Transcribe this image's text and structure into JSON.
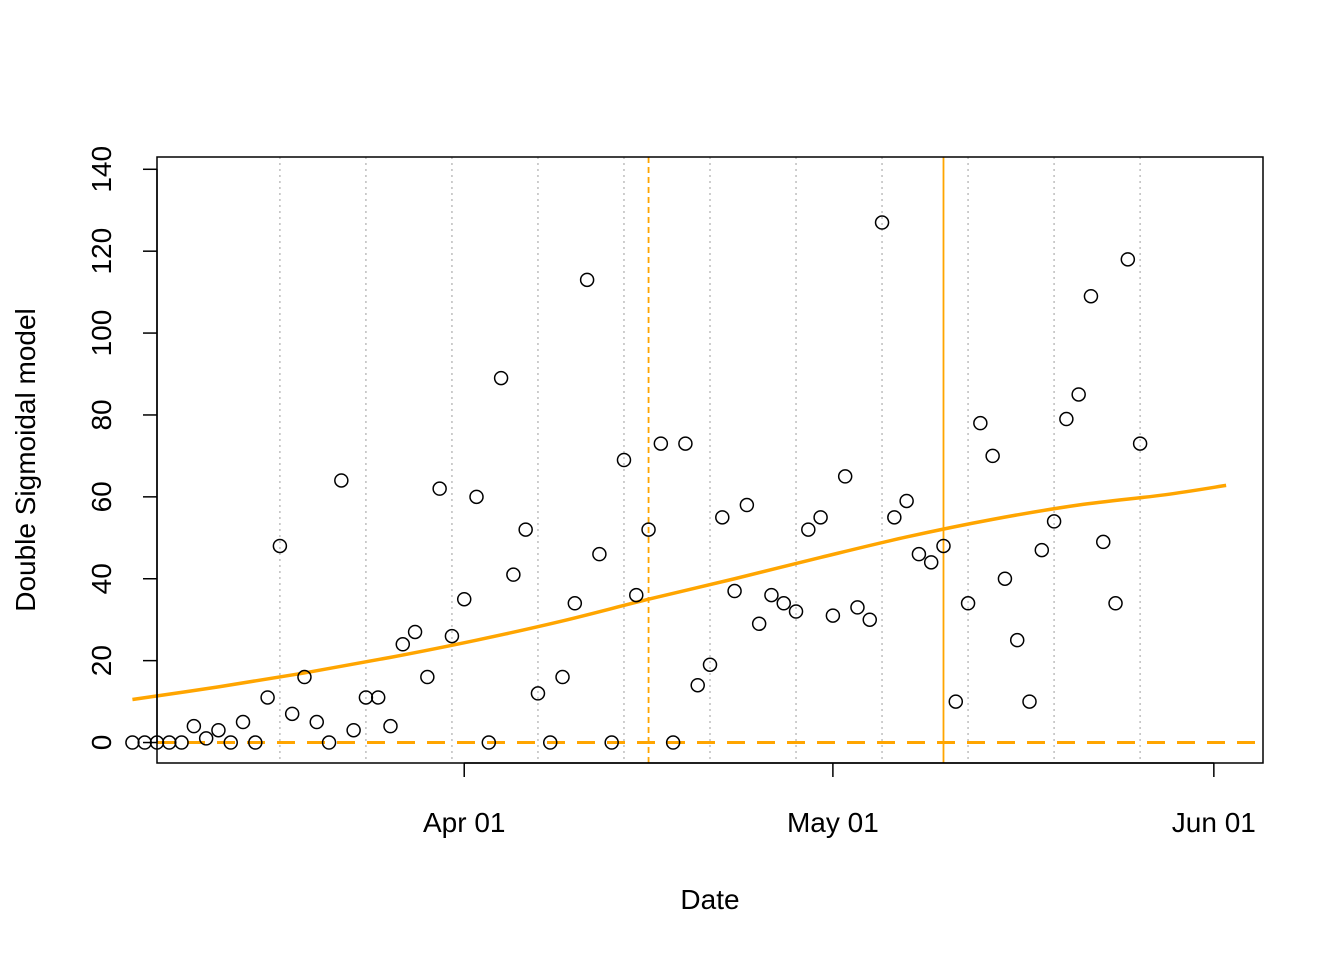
{
  "chart_data": {
    "type": "scatter",
    "xlabel": "Date",
    "ylabel": "Double Sigmoidal model",
    "x_ticks": [
      {
        "date": "2020-04-01",
        "label": "Apr 01"
      },
      {
        "date": "2020-05-01",
        "label": "May 01"
      },
      {
        "date": "2020-06-01",
        "label": "Jun 01"
      }
    ],
    "y_ticks": [
      0,
      20,
      40,
      60,
      80,
      100,
      120,
      140
    ],
    "xlim": [
      "2020-03-07",
      "2020-06-05"
    ],
    "ylim": [
      -5,
      143
    ],
    "grid": {
      "vertical_dotted_dates": [
        "2020-03-17",
        "2020-03-24",
        "2020-03-31",
        "2020-04-07",
        "2020-04-14",
        "2020-04-21",
        "2020-04-28",
        "2020-05-05",
        "2020-05-12",
        "2020-05-19",
        "2020-05-26"
      ]
    },
    "points": [
      {
        "x": "2020-03-05",
        "y": 0
      },
      {
        "x": "2020-03-06",
        "y": 0
      },
      {
        "x": "2020-03-07",
        "y": 0
      },
      {
        "x": "2020-03-08",
        "y": 0
      },
      {
        "x": "2020-03-09",
        "y": 0
      },
      {
        "x": "2020-03-10",
        "y": 4
      },
      {
        "x": "2020-03-11",
        "y": 1
      },
      {
        "x": "2020-03-12",
        "y": 3
      },
      {
        "x": "2020-03-13",
        "y": 0
      },
      {
        "x": "2020-03-14",
        "y": 5
      },
      {
        "x": "2020-03-15",
        "y": 0
      },
      {
        "x": "2020-03-16",
        "y": 11
      },
      {
        "x": "2020-03-17",
        "y": 48
      },
      {
        "x": "2020-03-18",
        "y": 7
      },
      {
        "x": "2020-03-19",
        "y": 16
      },
      {
        "x": "2020-03-20",
        "y": 5
      },
      {
        "x": "2020-03-21",
        "y": 0
      },
      {
        "x": "2020-03-22",
        "y": 64
      },
      {
        "x": "2020-03-23",
        "y": 3
      },
      {
        "x": "2020-03-24",
        "y": 11
      },
      {
        "x": "2020-03-25",
        "y": 11
      },
      {
        "x": "2020-03-26",
        "y": 4
      },
      {
        "x": "2020-03-27",
        "y": 24
      },
      {
        "x": "2020-03-28",
        "y": 27
      },
      {
        "x": "2020-03-29",
        "y": 16
      },
      {
        "x": "2020-03-30",
        "y": 62
      },
      {
        "x": "2020-03-31",
        "y": 26
      },
      {
        "x": "2020-04-01",
        "y": 35
      },
      {
        "x": "2020-04-02",
        "y": 60
      },
      {
        "x": "2020-04-03",
        "y": 0
      },
      {
        "x": "2020-04-04",
        "y": 89
      },
      {
        "x": "2020-04-05",
        "y": 41
      },
      {
        "x": "2020-04-06",
        "y": 52
      },
      {
        "x": "2020-04-07",
        "y": 12
      },
      {
        "x": "2020-04-08",
        "y": 0
      },
      {
        "x": "2020-04-09",
        "y": 16
      },
      {
        "x": "2020-04-10",
        "y": 34
      },
      {
        "x": "2020-04-11",
        "y": 113
      },
      {
        "x": "2020-04-12",
        "y": 46
      },
      {
        "x": "2020-04-13",
        "y": 0
      },
      {
        "x": "2020-04-14",
        "y": 69
      },
      {
        "x": "2020-04-15",
        "y": 36
      },
      {
        "x": "2020-04-16",
        "y": 52
      },
      {
        "x": "2020-04-17",
        "y": 73
      },
      {
        "x": "2020-04-18",
        "y": 0
      },
      {
        "x": "2020-04-19",
        "y": 73
      },
      {
        "x": "2020-04-20",
        "y": 14
      },
      {
        "x": "2020-04-21",
        "y": 19
      },
      {
        "x": "2020-04-22",
        "y": 55
      },
      {
        "x": "2020-04-23",
        "y": 37
      },
      {
        "x": "2020-04-24",
        "y": 58
      },
      {
        "x": "2020-04-25",
        "y": 29
      },
      {
        "x": "2020-04-26",
        "y": 36
      },
      {
        "x": "2020-04-27",
        "y": 34
      },
      {
        "x": "2020-04-28",
        "y": 32
      },
      {
        "x": "2020-04-29",
        "y": 52
      },
      {
        "x": "2020-04-30",
        "y": 55
      },
      {
        "x": "2020-05-01",
        "y": 31
      },
      {
        "x": "2020-05-02",
        "y": 65
      },
      {
        "x": "2020-05-03",
        "y": 33
      },
      {
        "x": "2020-05-04",
        "y": 30
      },
      {
        "x": "2020-05-05",
        "y": 127
      },
      {
        "x": "2020-05-06",
        "y": 55
      },
      {
        "x": "2020-05-07",
        "y": 59
      },
      {
        "x": "2020-05-08",
        "y": 46
      },
      {
        "x": "2020-05-09",
        "y": 44
      },
      {
        "x": "2020-05-10",
        "y": 48
      },
      {
        "x": "2020-05-11",
        "y": 10
      },
      {
        "x": "2020-05-12",
        "y": 34
      },
      {
        "x": "2020-05-13",
        "y": 78
      },
      {
        "x": "2020-05-14",
        "y": 70
      },
      {
        "x": "2020-05-15",
        "y": 40
      },
      {
        "x": "2020-05-16",
        "y": 25
      },
      {
        "x": "2020-05-17",
        "y": 10
      },
      {
        "x": "2020-05-18",
        "y": 47
      },
      {
        "x": "2020-05-19",
        "y": 54
      },
      {
        "x": "2020-05-20",
        "y": 79
      },
      {
        "x": "2020-05-21",
        "y": 85
      },
      {
        "x": "2020-05-22",
        "y": 109
      },
      {
        "x": "2020-05-23",
        "y": 49
      },
      {
        "x": "2020-05-24",
        "y": 34
      },
      {
        "x": "2020-05-25",
        "y": 118
      },
      {
        "x": "2020-05-26",
        "y": 73
      }
    ],
    "fitted_curve": {
      "color": "#FFA500",
      "points": [
        {
          "x": "2020-03-05",
          "y": 10.5
        },
        {
          "x": "2020-03-12",
          "y": 13.6
        },
        {
          "x": "2020-03-19",
          "y": 17.0
        },
        {
          "x": "2020-03-26",
          "y": 20.8
        },
        {
          "x": "2020-04-02",
          "y": 25.0
        },
        {
          "x": "2020-04-09",
          "y": 29.7
        },
        {
          "x": "2020-04-16",
          "y": 35.0
        },
        {
          "x": "2020-04-23",
          "y": 40.0
        },
        {
          "x": "2020-04-30",
          "y": 45.2
        },
        {
          "x": "2020-05-07",
          "y": 50.2
        },
        {
          "x": "2020-05-14",
          "y": 54.5
        },
        {
          "x": "2020-05-21",
          "y": 58.0
        },
        {
          "x": "2020-05-28",
          "y": 60.5
        },
        {
          "x": "2020-06-02",
          "y": 62.8
        }
      ]
    },
    "reference_lines": {
      "color": "#FFA500",
      "horizontal_dashed_y": 0,
      "vertical_dashed_date": "2020-04-16",
      "vertical_solid_date": "2020-05-10"
    }
  }
}
